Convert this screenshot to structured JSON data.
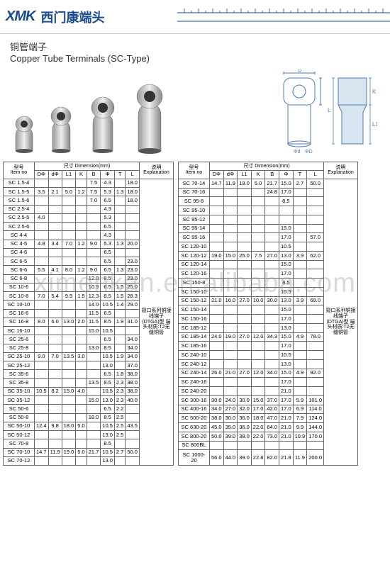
{
  "header": {
    "logo": "XMK",
    "logo_cn": "西门康端头"
  },
  "title": {
    "cn": "铜管端子",
    "en": "Copper Tube Terminals (SC-Type)"
  },
  "watermark": "ximenkan.en.alibaba.com",
  "diagram_labels": {
    "B": "B",
    "K": "K",
    "L1": "L1",
    "L": "L",
    "d1": "Φd",
    "d0": "ΦD"
  },
  "table_headers": {
    "item_cn": "型号",
    "item_en": "Item no",
    "dim_cn": "尺寸",
    "dim_en": "Dimension(mm)",
    "desc_cn": "说明",
    "desc_en": "Explanation",
    "D": "DΦ",
    "d": "dΦ",
    "L1": "L1",
    "K": "K",
    "B": "B",
    "phi": "Φ",
    "T": "T",
    "L": "L"
  },
  "explain1": "窥口系列铜接线端子(DTGA)型 端头材质:T2无缝铜管",
  "explain2": "窥口系列铜接线端子(DTGA)型 端头材质:T2无缝铜管",
  "left_rows": [
    [
      "SC 1.5-4",
      "",
      "",
      "",
      "",
      "7.5",
      "4.3",
      "",
      "18.0"
    ],
    [
      "SC 1.5-5",
      "3.5",
      "2.1",
      "5.0",
      "1.2",
      "7.5",
      "5.3",
      "1.3",
      "18.0"
    ],
    [
      "SC 1.5-6",
      "",
      "",
      "",
      "",
      "7.0",
      "6.5",
      "",
      "18.0"
    ],
    [
      "SC 2.5-4",
      "",
      "",
      "",
      "",
      "",
      "4.3",
      "",
      ""
    ],
    [
      "SC 2.5-5",
      "4.0",
      "",
      "",
      "",
      "",
      "5.3",
      "",
      ""
    ],
    [
      "SC 2.5-6",
      "",
      "",
      "",
      "",
      "",
      "6.5",
      "",
      ""
    ],
    [
      "SC 4-4",
      "",
      "",
      "",
      "",
      "",
      "4.3",
      "",
      ""
    ],
    [
      "SC 4-5",
      "4.8",
      "3.4",
      "7.0",
      "1.2",
      "9.0",
      "5.3",
      "1.3",
      "20.0"
    ],
    [
      "SC 4-6",
      "",
      "",
      "",
      "",
      "",
      "6.5",
      "",
      ""
    ],
    [
      "SC 6-5",
      "",
      "",
      "",
      "",
      "",
      "6.5",
      "",
      "23.0"
    ],
    [
      "SC 6-6",
      "5.5",
      "4.1",
      "8.0",
      "1.2",
      "9.0",
      "6.5",
      "1.3",
      "23.0"
    ],
    [
      "SC 6-8",
      "",
      "",
      "",
      "",
      "12.0",
      "8.5",
      "",
      "23.0"
    ],
    [
      "SC 10-6",
      "",
      "",
      "",
      "",
      "10.3",
      "6.5",
      "1.5",
      "25.0"
    ],
    [
      "SC 10-8",
      "7.0",
      "5.4",
      "9.5",
      "1.5",
      "12.3",
      "8.5",
      "1.5",
      "28.3"
    ],
    [
      "SC 10-10",
      "",
      "",
      "",
      "",
      "14.0",
      "10.5",
      "1.4",
      "29.0"
    ],
    [
      "SC 16-6",
      "",
      "",
      "",
      "",
      "11.5",
      "6.5",
      "",
      ""
    ],
    [
      "SC 16-8",
      "8.0",
      "6.0",
      "13.0",
      "2.0",
      "11.5",
      "8.5",
      "1.9",
      "31.0"
    ],
    [
      "SC 16-10",
      "",
      "",
      "",
      "",
      "15.0",
      "10.5",
      "",
      ""
    ],
    [
      "SC 25-6",
      "",
      "",
      "",
      "",
      "",
      "6.5",
      "",
      "34.0"
    ],
    [
      "SC 25-8",
      "",
      "",
      "",
      "",
      "13.0",
      "8.5",
      "",
      "34.0"
    ],
    [
      "SC 25-10",
      "9.0",
      "7.0",
      "13.5",
      "3.0",
      "",
      "10.5",
      "1.9",
      "34.0"
    ],
    [
      "SC 25-12",
      "",
      "",
      "",
      "",
      "",
      "13.0",
      "",
      "37.0"
    ],
    [
      "SC 35-6",
      "",
      "",
      "",
      "",
      "",
      "6.5",
      "1.8",
      "38.0"
    ],
    [
      "SC 35-8",
      "",
      "",
      "",
      "",
      "13.5",
      "8.5",
      "2.3",
      "38.0"
    ],
    [
      "SC 35-10",
      "10.5",
      "8.2",
      "15.0",
      "4.0",
      "",
      "10.5",
      "2.3",
      "38.0"
    ],
    [
      "SC 35-12",
      "",
      "",
      "",
      "",
      "15.0",
      "13.0",
      "2.3",
      "40.0"
    ],
    [
      "SC 50-6",
      "",
      "",
      "",
      "",
      "",
      "6.5",
      "2.2",
      ""
    ],
    [
      "SC 50-8",
      "",
      "",
      "",
      "",
      "18.0",
      "8.5",
      "2.5",
      ""
    ],
    [
      "SC 50-10",
      "12.4",
      "9.8",
      "18.0",
      "5.0",
      "",
      "10.5",
      "2.5",
      "43.5"
    ],
    [
      "SC 50-12",
      "",
      "",
      "",
      "",
      "",
      "13.0",
      "2.5",
      ""
    ],
    [
      "SC 70-8",
      "",
      "",
      "",
      "",
      "",
      "8.5",
      "",
      ""
    ],
    [
      "SC 70-10",
      "14.7",
      "11.9",
      "19.0",
      "5.0",
      "21.7",
      "10.5",
      "2.7",
      "50.0"
    ],
    [
      "SC 70-12",
      "",
      "",
      "",
      "",
      "",
      "13.0",
      "",
      ""
    ]
  ],
  "right_rows": [
    [
      "SC 70-14",
      "14.7",
      "11.9",
      "19.0",
      "5.0",
      "21.7",
      "15.0",
      "2.7",
      "50.0"
    ],
    [
      "SC 70-16",
      "",
      "",
      "",
      "",
      "24.8",
      "17.0",
      "",
      ""
    ],
    [
      "SC 95-8",
      "",
      "",
      "",
      "",
      "",
      "8.5",
      "",
      ""
    ],
    [
      "SC 95-10",
      "",
      "",
      "",
      "",
      "",
      "",
      "",
      ""
    ],
    [
      "SC 95-12",
      "",
      "",
      "",
      "",
      "",
      "",
      "",
      ""
    ],
    [
      "SC 95-14",
      "",
      "",
      "",
      "",
      "",
      "15.0",
      "",
      ""
    ],
    [
      "SC 95-16",
      "",
      "",
      "",
      "",
      "",
      "17.0",
      "",
      "57.0"
    ],
    [
      "SC 120-10",
      "",
      "",
      "",
      "",
      "",
      "10.5",
      "",
      ""
    ],
    [
      "SC 120-12",
      "19.0",
      "15.0",
      "25.0",
      "7.5",
      "27.0",
      "13.0",
      "3.9",
      "62.0"
    ],
    [
      "SC 120-14",
      "",
      "",
      "",
      "",
      "",
      "15.0",
      "",
      ""
    ],
    [
      "SC 120-16",
      "",
      "",
      "",
      "",
      "",
      "17.0",
      "",
      ""
    ],
    [
      "SC 150-8",
      "",
      "",
      "",
      "",
      "",
      "8.5",
      "",
      ""
    ],
    [
      "SC 150-10",
      "",
      "",
      "",
      "",
      "",
      "10.5",
      "",
      ""
    ],
    [
      "SC 150-12",
      "21.0",
      "16.0",
      "27.0",
      "10.0",
      "30.0",
      "13.0",
      "3.9",
      "69.0"
    ],
    [
      "SC 150-14",
      "",
      "",
      "",
      "",
      "",
      "15.0",
      "",
      ""
    ],
    [
      "SC 150-16",
      "",
      "",
      "",
      "",
      "",
      "17.0",
      "",
      ""
    ],
    [
      "SC 185-12",
      "",
      "",
      "",
      "",
      "",
      "13.0",
      "",
      ""
    ],
    [
      "SC 185-14",
      "24.0",
      "19.0",
      "27.0",
      "12.0",
      "34.3",
      "15.0",
      "4.9",
      "78.0"
    ],
    [
      "SC 185-16",
      "",
      "",
      "",
      "",
      "",
      "17.0",
      "",
      ""
    ],
    [
      "SC 240-10",
      "",
      "",
      "",
      "",
      "",
      "10.5",
      "",
      ""
    ],
    [
      "SC 240-12",
      "",
      "",
      "",
      "",
      "",
      "13.0",
      "",
      ""
    ],
    [
      "SC 240-14",
      "26.0",
      "21.0",
      "27.0",
      "12.0",
      "34.0",
      "15.0",
      "4.9",
      "92.0"
    ],
    [
      "SC 240-16",
      "",
      "",
      "",
      "",
      "",
      "17.0",
      "",
      ""
    ],
    [
      "SC 240-20",
      "",
      "",
      "",
      "",
      "",
      "21.0",
      "",
      ""
    ],
    [
      "SC 300-16",
      "30.0",
      "24.0",
      "30.0",
      "15.0",
      "37.0",
      "17.0",
      "5.9",
      "101.0"
    ],
    [
      "SC 400-16",
      "34.0",
      "27.0",
      "32.0",
      "17.0",
      "42.0",
      "17.0",
      "6.9",
      "114.0"
    ],
    [
      "SC 500-20",
      "38.0",
      "30.0",
      "36.0",
      "18.0",
      "47.0",
      "21.0",
      "7.9",
      "124.0"
    ],
    [
      "SC 630-20",
      "45.0",
      "35.0",
      "36.0",
      "22.0",
      "64.0",
      "21.0",
      "9.9",
      "144.0"
    ],
    [
      "SC 800-20",
      "50.0",
      "39.0",
      "38.0",
      "22.0",
      "73.0",
      "21.0",
      "10.9",
      "170.0"
    ],
    [
      "SC 800BL",
      "",
      "",
      "",
      "",
      "",
      "",
      "",
      ""
    ],
    [
      "SC 1000-20",
      "56.0",
      "44.0",
      "39.0",
      "22.8",
      "82.0",
      "21.8",
      "11.9",
      "200.0"
    ]
  ]
}
